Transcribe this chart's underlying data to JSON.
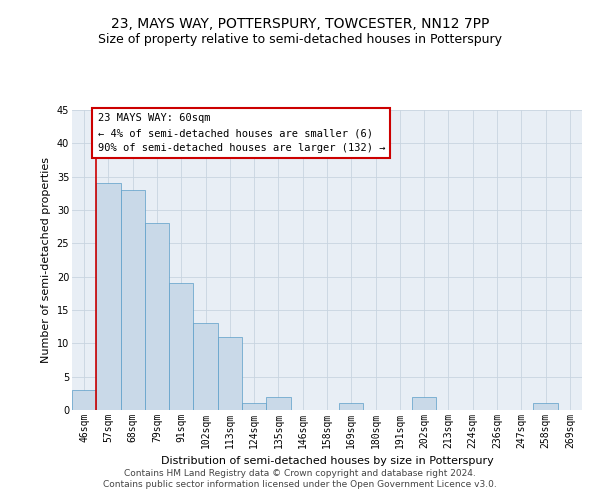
{
  "title_line1": "23, MAYS WAY, POTTERSPURY, TOWCESTER, NN12 7PP",
  "title_line2": "Size of property relative to semi-detached houses in Potterspury",
  "xlabel": "Distribution of semi-detached houses by size in Potterspury",
  "ylabel": "Number of semi-detached properties",
  "categories": [
    "46sqm",
    "57sqm",
    "68sqm",
    "79sqm",
    "91sqm",
    "102sqm",
    "113sqm",
    "124sqm",
    "135sqm",
    "146sqm",
    "158sqm",
    "169sqm",
    "180sqm",
    "191sqm",
    "202sqm",
    "213sqm",
    "224sqm",
    "236sqm",
    "247sqm",
    "258sqm",
    "269sqm"
  ],
  "values": [
    3,
    34,
    33,
    28,
    19,
    13,
    11,
    1,
    2,
    0,
    0,
    1,
    0,
    0,
    2,
    0,
    0,
    0,
    0,
    1,
    0
  ],
  "bar_color": "#c9d9e8",
  "bar_edge_color": "#5a9dc8",
  "property_size": "60sqm",
  "annotation_text": "23 MAYS WAY: 60sqm\n← 4% of semi-detached houses are smaller (6)\n90% of semi-detached houses are larger (132) →",
  "annotation_box_color": "#ffffff",
  "annotation_box_edge_color": "#cc0000",
  "vline_color": "#cc0000",
  "ylim": [
    0,
    45
  ],
  "yticks": [
    0,
    5,
    10,
    15,
    20,
    25,
    30,
    35,
    40,
    45
  ],
  "grid_color": "#c8d4e0",
  "background_color": "#e8eef5",
  "footer_line1": "Contains HM Land Registry data © Crown copyright and database right 2024.",
  "footer_line2": "Contains public sector information licensed under the Open Government Licence v3.0.",
  "title_fontsize": 10,
  "subtitle_fontsize": 9,
  "axis_label_fontsize": 8,
  "tick_fontsize": 7,
  "annotation_fontsize": 7.5,
  "footer_fontsize": 6.5
}
